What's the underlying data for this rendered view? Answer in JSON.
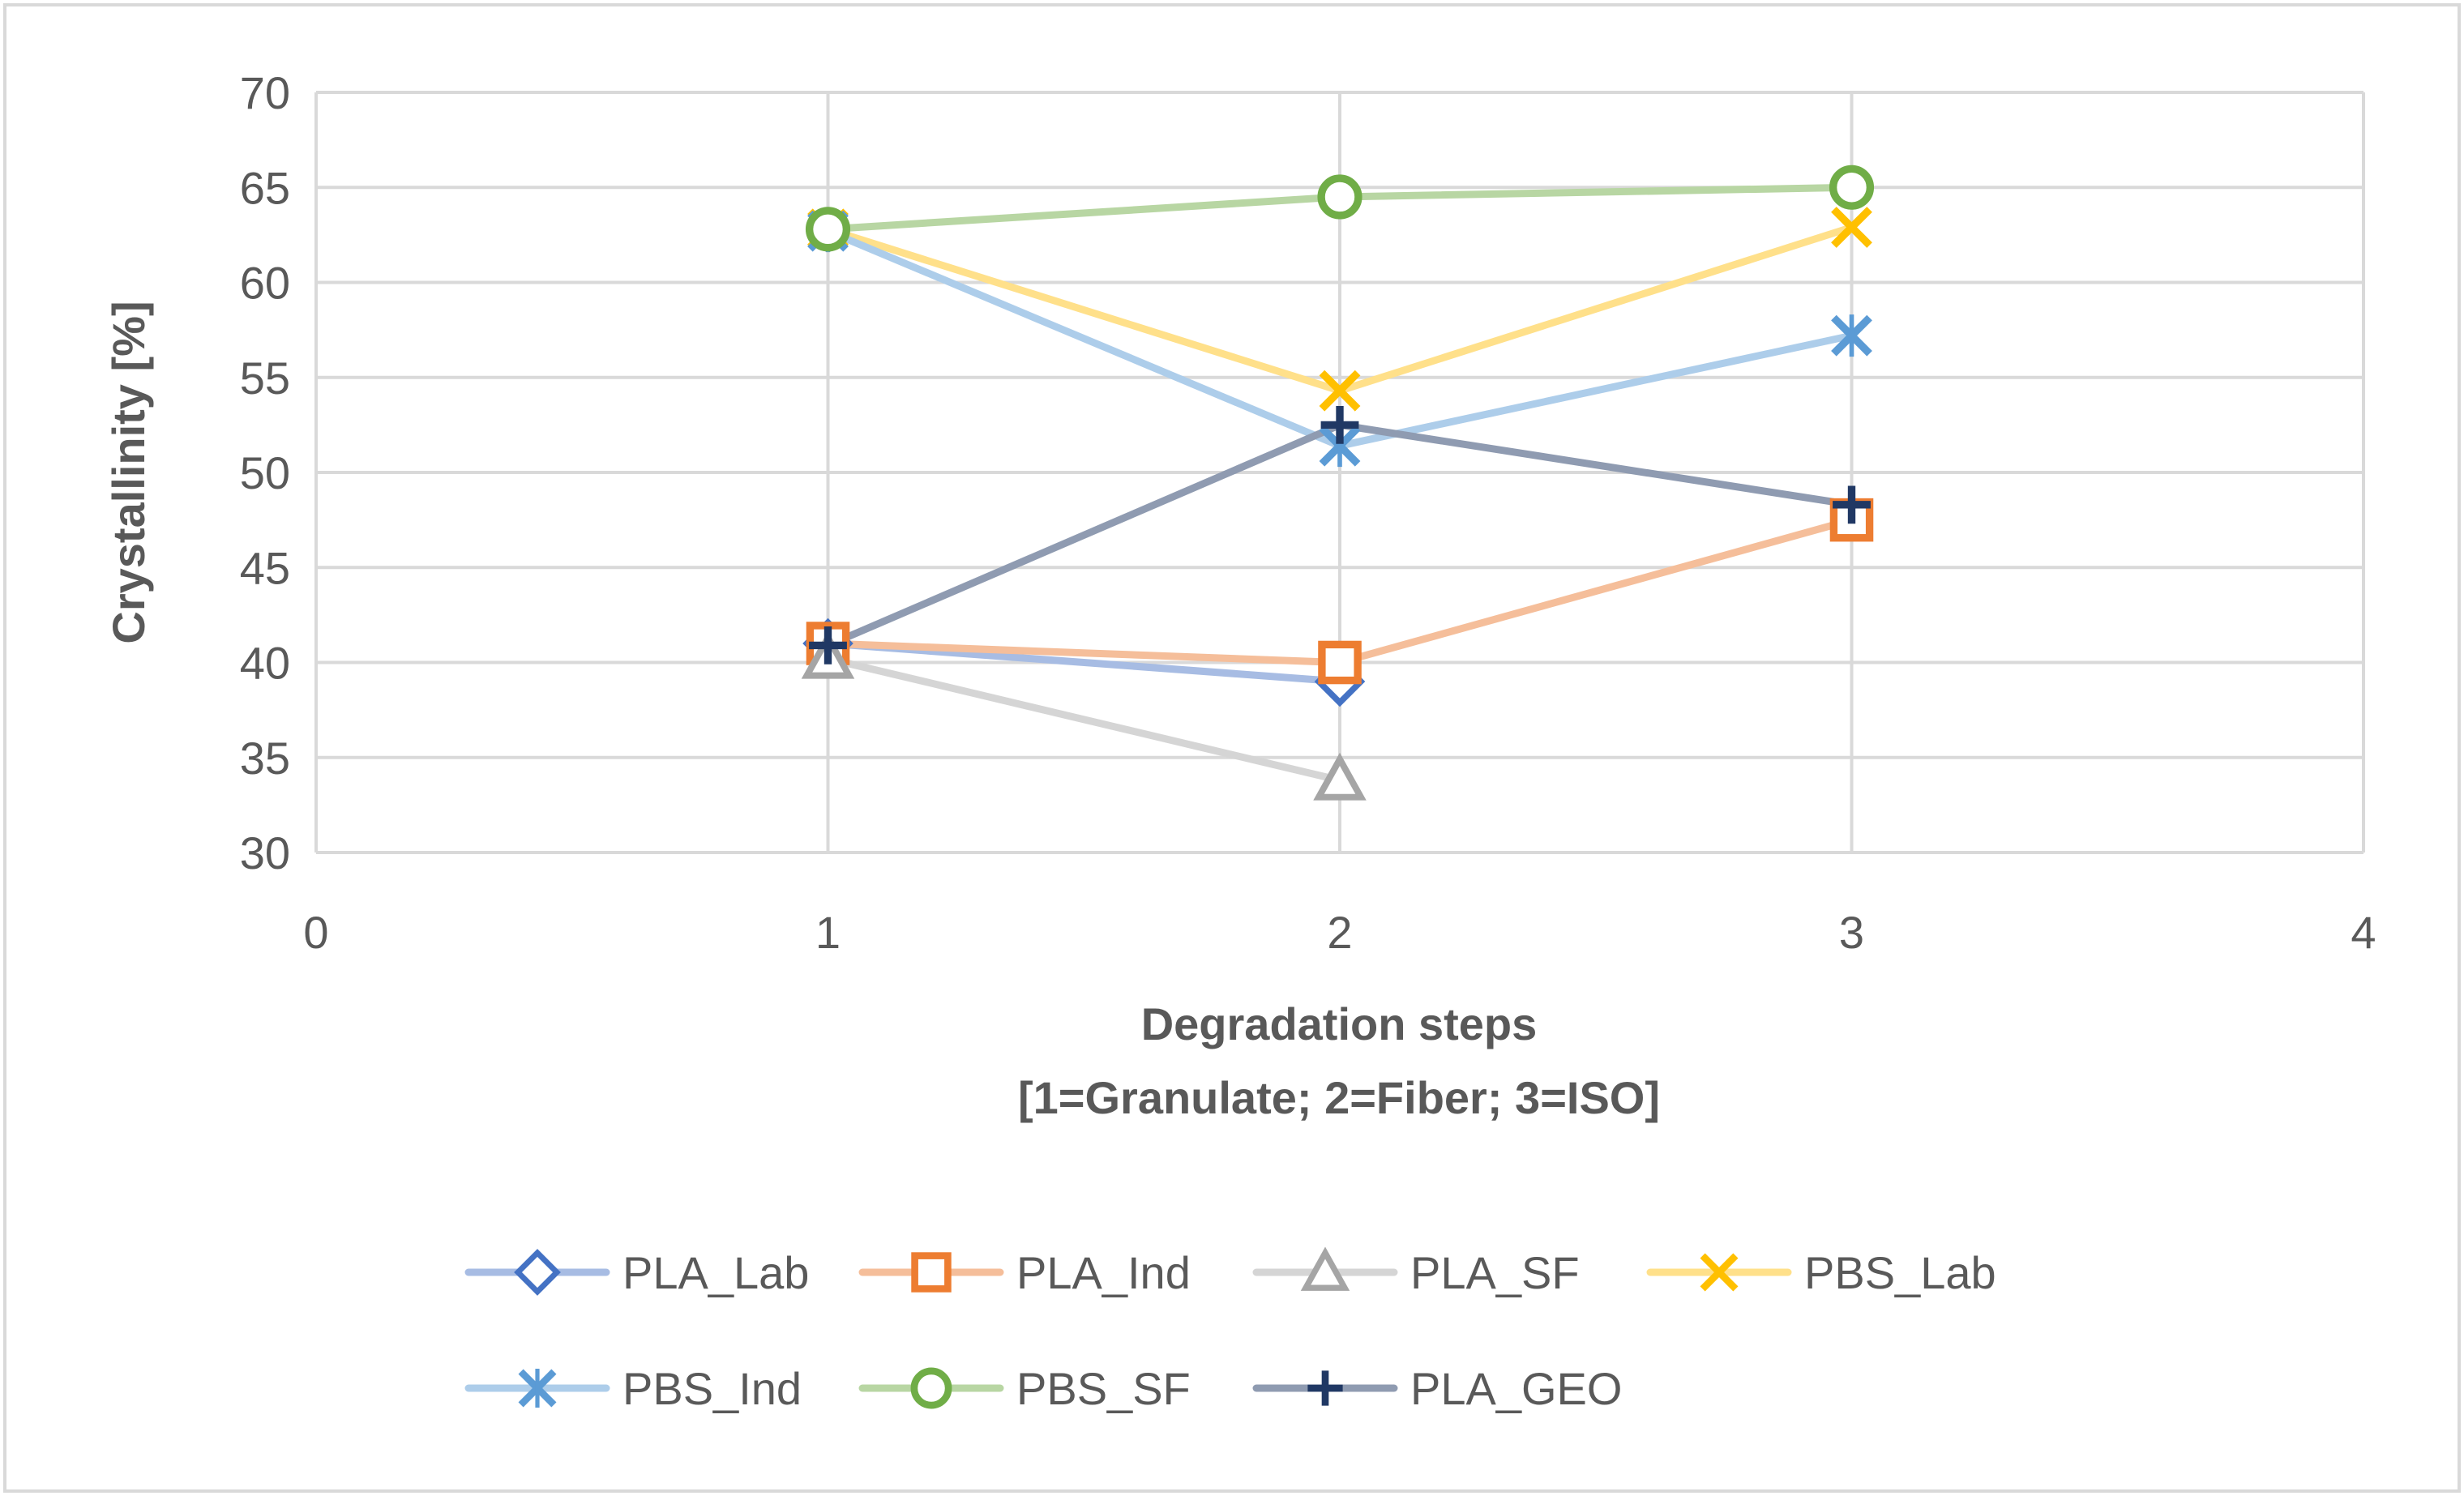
{
  "chart_data": {
    "type": "line",
    "title": "",
    "xlabel": "Degradation steps",
    "xlabel_line2": "[1=Granulate; 2=Fiber; 3=ISO]",
    "ylabel": "Crystallinity [%]",
    "xlim": [
      0,
      4
    ],
    "ylim": [
      30,
      70
    ],
    "x_ticks": [
      0,
      1,
      2,
      3,
      4
    ],
    "y_ticks": [
      30,
      35,
      40,
      45,
      50,
      55,
      60,
      65,
      70
    ],
    "grid": true,
    "legend_position": "bottom",
    "series": [
      {
        "name": "PLA_Lab",
        "x": [
          1,
          2
        ],
        "values": [
          41.0,
          39.0
        ],
        "color": "#4472C4",
        "line_color": "#A7BCE3",
        "marker": "diamond"
      },
      {
        "name": "PLA_Ind",
        "x": [
          1,
          2,
          3
        ],
        "values": [
          41.0,
          40.0,
          47.5
        ],
        "color": "#ED7D31",
        "line_color": "#F5BE9A",
        "marker": "square"
      },
      {
        "name": "PLA_SF",
        "x": [
          1,
          2
        ],
        "values": [
          40.2,
          33.8
        ],
        "color": "#A5A5A5",
        "line_color": "#D5D5D5",
        "marker": "triangle"
      },
      {
        "name": "PBS_Lab",
        "x": [
          1,
          2,
          3
        ],
        "values": [
          62.8,
          54.3,
          62.9
        ],
        "color": "#FFC000",
        "line_color": "#FFE08A",
        "marker": "x"
      },
      {
        "name": "PBS_Ind",
        "x": [
          1,
          2,
          3
        ],
        "values": [
          62.7,
          51.4,
          57.2
        ],
        "color": "#5B9BD5",
        "line_color": "#ADCDEA",
        "marker": "star"
      },
      {
        "name": "PBS_SF",
        "x": [
          1,
          2,
          3
        ],
        "values": [
          62.8,
          64.5,
          65.0
        ],
        "color": "#70AD47",
        "line_color": "#B8D6A3",
        "marker": "circle"
      },
      {
        "name": "PLA_GEO",
        "x": [
          1,
          2,
          3
        ],
        "values": [
          40.9,
          52.5,
          48.3
        ],
        "color": "#203864",
        "line_color": "#8F9BB1",
        "marker": "plus"
      }
    ]
  }
}
